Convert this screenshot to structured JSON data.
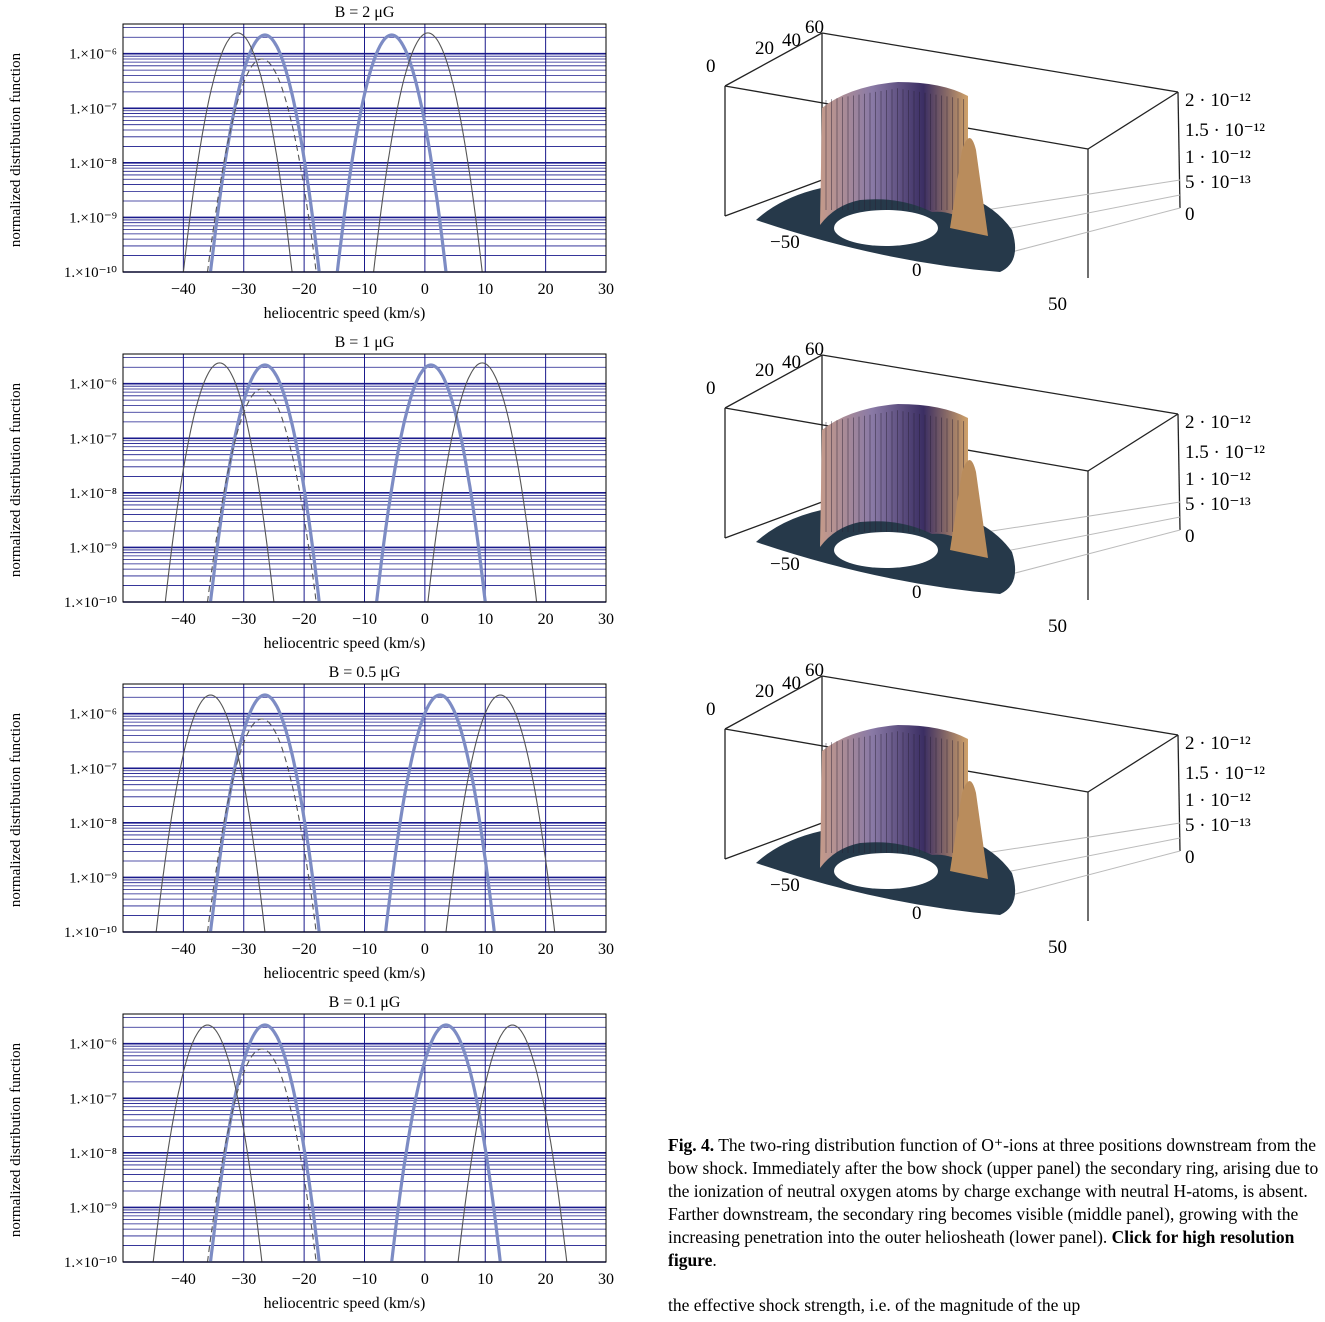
{
  "chart_data": [
    {
      "type": "line",
      "title": "B = 2 μG",
      "xlabel": "heliocentric speed (km/s)",
      "ylabel": "normalized distribution function",
      "xlim": [
        -50,
        30
      ],
      "ylim": [
        1e-10,
        3.5e-06
      ],
      "yscale": "log",
      "grid": true,
      "x_ticks": [
        "−40",
        "−30",
        "−20",
        "−10",
        "0",
        "10",
        "20",
        "30"
      ],
      "y_ticks": [
        "1.×10⁻⁶",
        "1.×10⁻⁷",
        "1.×10⁻⁸",
        "1.×10⁻⁹",
        "1.×10⁻¹⁰"
      ],
      "series": [
        {
          "style": "thick-blue",
          "peaks_x": [
            -26.5,
            -5.5
          ],
          "peak_y": 2.2e-06,
          "halfwidth_at_1e-10": [
            9.5,
            10.0
          ]
        },
        {
          "style": "thin-gray",
          "peaks_x": [
            -31,
            0.5
          ],
          "peak_y": 2.4e-06,
          "halfwidth_at_1e-10": [
            10.0,
            9.5
          ]
        },
        {
          "style": "dashed",
          "peaks_x": [
            -27
          ],
          "peak_y": 8e-07,
          "halfwidth_at_1e-10": [
            9.0
          ]
        }
      ]
    },
    {
      "type": "line",
      "title": "B = 1 μG",
      "xlabel": "heliocentric speed (km/s)",
      "ylabel": "normalized distribution function",
      "xlim": [
        -50,
        30
      ],
      "ylim": [
        1e-10,
        3.5e-06
      ],
      "yscale": "log",
      "grid": true,
      "x_ticks": [
        "−40",
        "−30",
        "−20",
        "−10",
        "0",
        "10",
        "20",
        "30"
      ],
      "y_ticks": [
        "1.×10⁻⁶",
        "1.×10⁻⁷",
        "1.×10⁻⁸",
        "1.×10⁻⁹",
        "1.×10⁻¹⁰"
      ],
      "series": [
        {
          "style": "thick-blue",
          "peaks_x": [
            -26.5,
            1
          ],
          "peak_y": 2.2e-06,
          "halfwidth_at_1e-10": [
            9.5,
            9.5
          ]
        },
        {
          "style": "thin-gray",
          "peaks_x": [
            -34,
            9.5
          ],
          "peak_y": 2.4e-06,
          "halfwidth_at_1e-10": [
            12.0,
            11.0
          ]
        },
        {
          "style": "dashed",
          "peaks_x": [
            -27
          ],
          "peak_y": 8e-07,
          "halfwidth_at_1e-10": [
            9.0
          ]
        }
      ]
    },
    {
      "type": "line",
      "title": "B = 0.5 μG",
      "xlabel": "heliocentric speed (km/s)",
      "ylabel": "normalized distribution function",
      "xlim": [
        -50,
        30
      ],
      "ylim": [
        1e-10,
        3.5e-06
      ],
      "yscale": "log",
      "grid": true,
      "x_ticks": [
        "−40",
        "−30",
        "−20",
        "−10",
        "0",
        "10",
        "20",
        "30"
      ],
      "y_ticks": [
        "1.×10⁻⁶",
        "1.×10⁻⁷",
        "1.×10⁻⁸",
        "1.×10⁻⁹",
        "1.×10⁻¹⁰"
      ],
      "series": [
        {
          "style": "thick-blue",
          "peaks_x": [
            -26.5,
            2.5
          ],
          "peak_y": 2.2e-06,
          "halfwidth_at_1e-10": [
            9.0,
            9.0
          ]
        },
        {
          "style": "thin-gray",
          "peaks_x": [
            -35.5,
            12.5
          ],
          "peak_y": 2.2e-06,
          "halfwidth_at_1e-10": [
            13.5,
            14.5
          ]
        },
        {
          "style": "dashed",
          "peaks_x": [
            -27
          ],
          "peak_y": 8e-07,
          "halfwidth_at_1e-10": [
            9.0
          ]
        }
      ]
    },
    {
      "type": "line",
      "title": "B = 0.1 μG",
      "xlabel": "heliocentric speed (km/s)",
      "ylabel": "normalized distribution function",
      "xlim": [
        -50,
        30
      ],
      "ylim": [
        1e-10,
        3.5e-06
      ],
      "yscale": "log",
      "grid": true,
      "x_ticks": [
        "−40",
        "−30",
        "−20",
        "−10",
        "0",
        "10",
        "20",
        "30"
      ],
      "y_ticks": [
        "1.×10⁻⁶",
        "1.×10⁻⁷",
        "1.×10⁻⁸",
        "1.×10⁻⁹",
        "1.×10⁻¹⁰"
      ],
      "series": [
        {
          "style": "thick-blue",
          "peaks_x": [
            -26.5,
            3.5
          ],
          "peak_y": 2.2e-06,
          "halfwidth_at_1e-10": [
            9.0,
            9.0
          ]
        },
        {
          "style": "thin-gray",
          "peaks_x": [
            -36,
            14.5
          ],
          "peak_y": 2.2e-06,
          "halfwidth_at_1e-10": [
            13.5,
            13.5
          ]
        },
        {
          "style": "dashed",
          "peaks_x": [
            -27
          ],
          "peak_y": 8e-07,
          "halfwidth_at_1e-10": [
            9.0
          ]
        }
      ]
    }
  ],
  "surface_plots": {
    "y_axis_ticks": [
      "0",
      "20",
      "40",
      "60"
    ],
    "x_axis_ticks": [
      "−50",
      "0",
      "50"
    ],
    "z_axis_ticks": [
      "2 · 10⁻¹²",
      "1.5 · 10⁻¹²",
      "1 · 10⁻¹²",
      "5 · 10⁻¹³",
      "0"
    ],
    "panels": [
      "upper",
      "middle",
      "lower"
    ]
  },
  "caption": {
    "label": "Fig. 4.",
    "text": "  The two-ring distribution function of O⁺-ions at three positions downstream from the bow shock. Immediately after the bow shock (upper panel) the secondary ring, arising due to the ionization of neutral oxygen atoms by charge exchange with neutral H-atoms, is absent.  Farther downstream, the secondary ring becomes visible (middle panel), growing with the increasing penetration into the outer heliosheath (lower panel). ",
    "link": "Click for high resolution figure",
    "end": "."
  },
  "trailing_text": "the effective shock strength, i.e. of the magnitude of the up",
  "colors": {
    "grid": "#1a1a8c",
    "thick_curve": "#7d8cc4",
    "thin_curve": "#555555",
    "surface_top": "#8a7aa6",
    "surface_base": "#26394a"
  }
}
